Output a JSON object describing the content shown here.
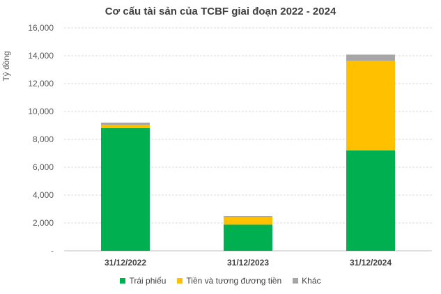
{
  "chart_data": {
    "type": "bar",
    "stacked": true,
    "title": "Cơ cấu tài sản của TCBF giai đoạn 2022 - 2024",
    "xlabel": "",
    "ylabel": "Tỷ đồng",
    "ylim": [
      0,
      16000
    ],
    "yticks": [
      "-",
      "2,000",
      "4,000",
      "6,000",
      "8,000",
      "10,000",
      "12,000",
      "14,000",
      "16,000"
    ],
    "categories": [
      "31/12/2022",
      "31/12/2023",
      "31/12/2024"
    ],
    "series": [
      {
        "name": "Trái phiếu",
        "color": "#00b050",
        "values": [
          8800,
          1880,
          7200
        ]
      },
      {
        "name": "Tiền và tương đương tiền",
        "color": "#ffc000",
        "values": [
          230,
          530,
          6450
        ]
      },
      {
        "name": "Khác",
        "color": "#a6a6a6",
        "values": [
          170,
          90,
          430
        ]
      }
    ],
    "grid": true,
    "legend": "bottom"
  }
}
